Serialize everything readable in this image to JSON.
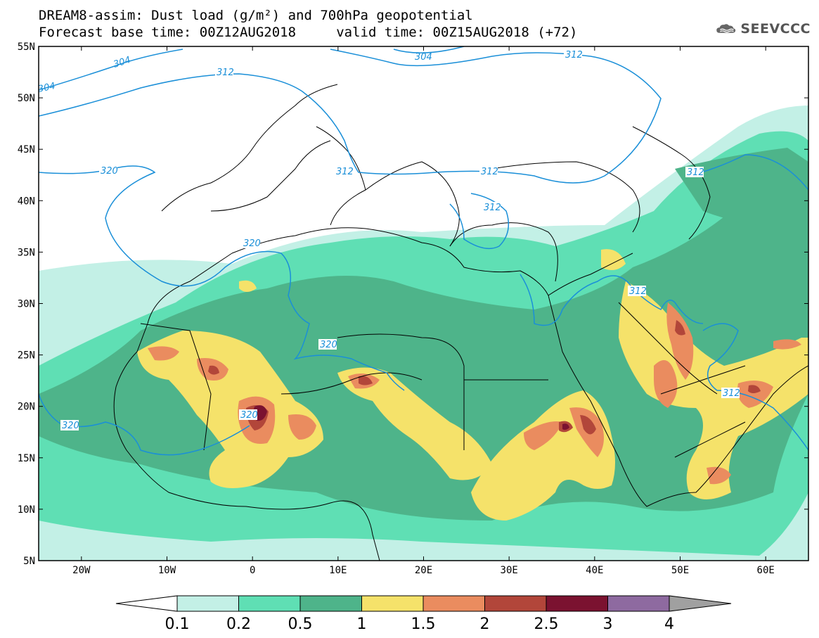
{
  "title": {
    "line1": "DREAM8-assim: Dust load (g/m²) and 700hPa geopotential",
    "line2": "Forecast base time: 00Z12AUG2018     valid time: 00Z15AUG2018 (+72)"
  },
  "logo": {
    "text": "SEEVCCC",
    "icon": "cloud-icon"
  },
  "map": {
    "lon_range": [
      -25,
      65
    ],
    "lat_range": [
      5,
      55
    ],
    "lat_ticks": [
      "55N",
      "50N",
      "45N",
      "40N",
      "35N",
      "30N",
      "25N",
      "20N",
      "15N",
      "10N",
      "5N"
    ],
    "lon_ticks": [
      "20W",
      "10W",
      "0",
      "10E",
      "20E",
      "30E",
      "40E",
      "50E",
      "60E"
    ],
    "contour_labels": [
      "304",
      "304",
      "304",
      "312",
      "312",
      "312",
      "312",
      "312",
      "312",
      "312",
      "312",
      "320",
      "320",
      "320",
      "320",
      "320"
    ]
  },
  "colorbar": {
    "levels": [
      "0.1",
      "0.2",
      "0.5",
      "1",
      "1.5",
      "2",
      "2.5",
      "3",
      "4"
    ],
    "colors": [
      "#c3f0e6",
      "#5fdfb4",
      "#4eb48a",
      "#f5e26a",
      "#ea8c5f",
      "#b2463a",
      "#7b1230",
      "#8e6aa0"
    ],
    "below_color": "#ffffff",
    "above_color": "#a0a0a0"
  },
  "colors": {
    "contour": "#1a8fd8",
    "land_lines": "#000000"
  }
}
